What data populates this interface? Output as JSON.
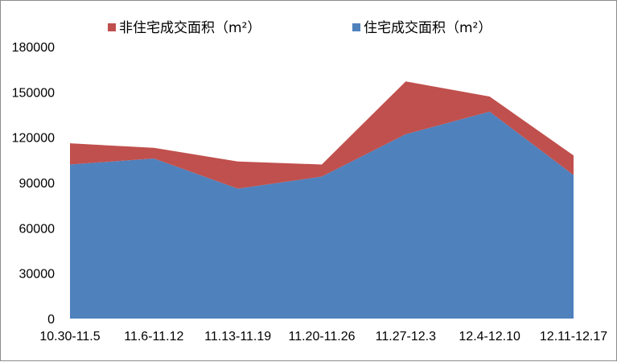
{
  "chart_data": {
    "type": "area",
    "stacked": true,
    "categories": [
      "10.30-11.5",
      "11.6-11.12",
      "11.13-11.19",
      "11.20-11.26",
      "11.27-12.3",
      "12.4-12.10",
      "12.11-12.17"
    ],
    "series": [
      {
        "name": "住宅成交面积（m²）",
        "color": "#4f81bd",
        "values": [
          102000,
          106000,
          86000,
          94000,
          122000,
          137000,
          95000
        ]
      },
      {
        "name": "非住宅成交面积（m²）",
        "color": "#c0504d",
        "values": [
          14000,
          7000,
          18000,
          8000,
          35000,
          10000,
          13000
        ]
      }
    ],
    "ylim": [
      0,
      180000
    ],
    "yticks": [
      0,
      30000,
      60000,
      90000,
      120000,
      150000,
      180000
    ],
    "legend": "top",
    "grid": false
  }
}
